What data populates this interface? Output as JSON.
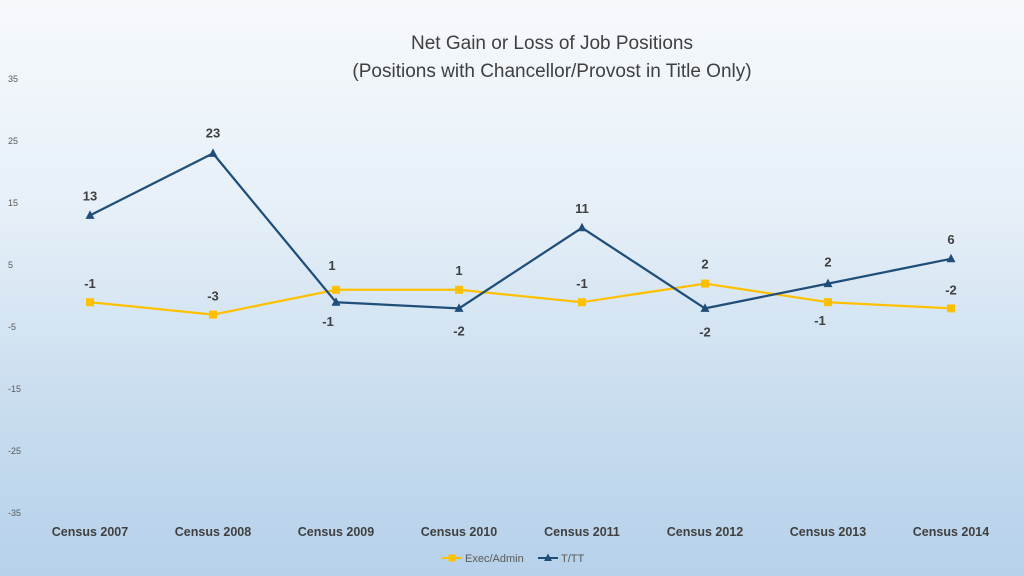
{
  "chart_data": {
    "type": "line",
    "title": "Net Gain or Loss of Job Positions",
    "subtitle": "(Positions with Chancellor/Provost in Title Only)",
    "categories": [
      "Census 2007",
      "Census 2008",
      "Census 2009",
      "Census 2010",
      "Census 2011",
      "Census 2012",
      "Census 2013",
      "Census 2014"
    ],
    "y_ticks": [
      35,
      25,
      15,
      5,
      -5,
      -15,
      -25,
      -35
    ],
    "ylim": [
      -35,
      35
    ],
    "grid": false,
    "legend_position": "bottom",
    "series": [
      {
        "name": "Exec/Admin",
        "color": "#FFC000",
        "marker": "square",
        "values": [
          -1,
          -3,
          1,
          1,
          -1,
          2,
          -1,
          -2
        ],
        "data_labels": [
          "-1",
          "-3",
          "1",
          "1",
          "-1",
          "2",
          "-1",
          "-2"
        ]
      },
      {
        "name": "T/TT",
        "color": "#1F4E79",
        "marker": "triangle",
        "values": [
          13,
          23,
          -1,
          -2,
          11,
          -2,
          2,
          6
        ],
        "data_labels": [
          "13",
          "23",
          "-1",
          "-2",
          "11",
          "-2",
          "2",
          "6"
        ]
      }
    ]
  }
}
